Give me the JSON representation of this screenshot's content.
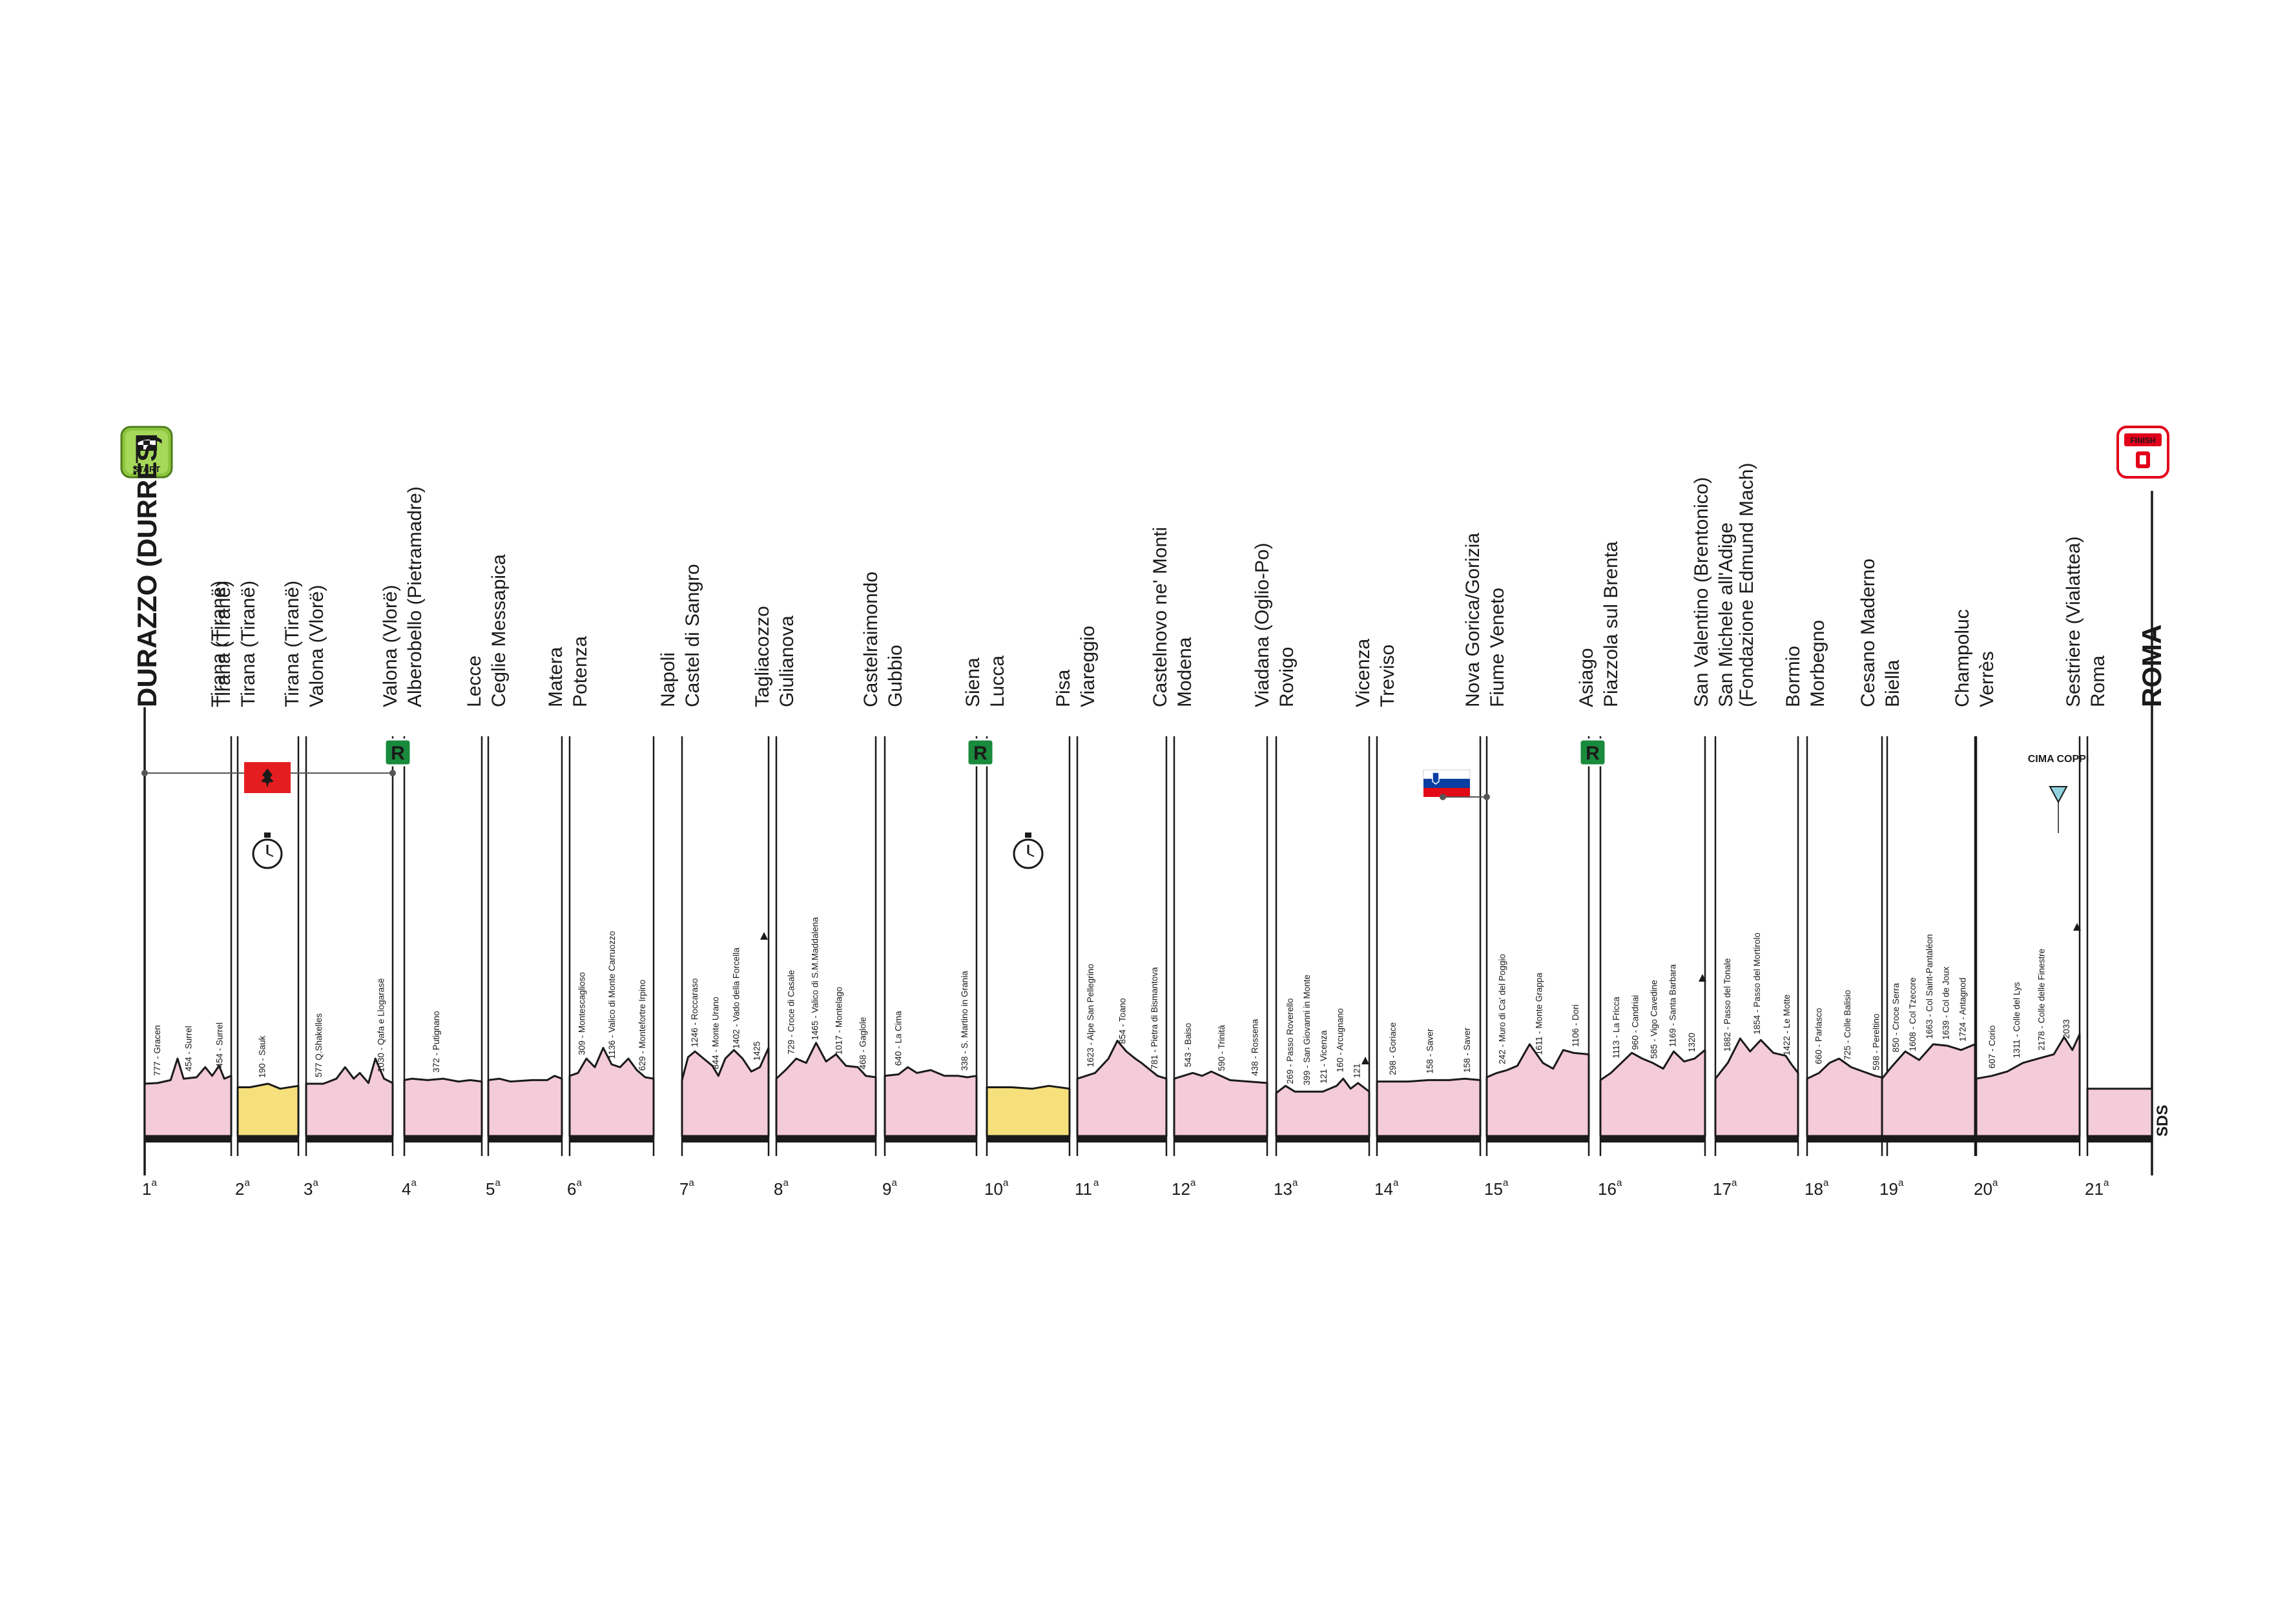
{
  "start": {
    "city": "DURAZZO (DURRËS)",
    "badge": "START"
  },
  "finish": {
    "city": "ROMA",
    "badge": "FINISH"
  },
  "cima_coppi": "CIMA COPPI",
  "brand": "SDS",
  "colors": {
    "mountain_fill": "#f4cbd8",
    "flat_tt_fill": "#f6e07c",
    "profile_stroke": "#1a1a1a",
    "rest_day": "#1a8a3c",
    "albania_flag": "#e41e20",
    "slovenia_red": "#e30a17",
    "slovenia_blue": "#0a3ea3",
    "start_badge": "#8dc63f",
    "finish_badge": "#e2001a",
    "cima_coppi": "#8fd3df"
  },
  "stages": [
    {
      "num": "1",
      "sup": "a",
      "kind": "road",
      "from": "",
      "to": "Tirana (Tiranë)",
      "climbs": [
        "777 - Gracen",
        "454 - Surrel",
        "454 - Surrel"
      ]
    },
    {
      "num": "2",
      "sup": "a",
      "kind": "itt",
      "from": "Tirana (Tiranë)",
      "to": "Tirana (Tiranë)",
      "climbs": [
        "190 - Sauk"
      ]
    },
    {
      "num": "3",
      "sup": "a",
      "kind": "road",
      "from": "Tirana (Tiranë)",
      "to": "Valona (Vlorë)",
      "climbs": [
        "577 Q.Shakelles",
        "1030 - Qafa e Llogarasë"
      ]
    },
    {
      "num": "4",
      "sup": "a",
      "kind": "road",
      "from": "Valona (Vlorë)",
      "to": "Alberobello (Pietramadre)",
      "climbs": [
        "372 - Putignano"
      ]
    },
    {
      "num": "5",
      "sup": "a",
      "kind": "road",
      "from": "Lecce",
      "to": "Ceglie Messapica",
      "climbs": []
    },
    {
      "num": "6",
      "sup": "a",
      "kind": "road",
      "from": "Matera",
      "to": "Potenza",
      "climbs": [
        "309 - Montescaglioso",
        "1136 - Valico di Monte Carruozzo",
        "629 - Montefortre Irpino"
      ]
    },
    {
      "num": "7",
      "sup": "a",
      "kind": "road",
      "from": "Napoli",
      "to": "Castel di Sangro",
      "climbs": [
        "1246 - Roccaraso",
        "844 - Monte Urano",
        "1402 - Vado della Forcella",
        "1425"
      ]
    },
    {
      "num": "8",
      "sup": "a",
      "kind": "road",
      "from": "Tagliacozzo",
      "to": "Giulianova",
      "climbs": [
        "729 - Croce di Casale",
        "1465 - Valico di S.M.Maddalena",
        "1017 - Montelago",
        "468 - Gaglole"
      ]
    },
    {
      "num": "9",
      "sup": "a",
      "kind": "road",
      "from": "Castelraimondo",
      "to": "Gubbio",
      "climbs": [
        "640 - La Cima",
        "338 - S. Martino in Grania"
      ]
    },
    {
      "num": "10",
      "sup": "a",
      "kind": "itt",
      "from": "Siena",
      "to": "Lucca",
      "climbs": []
    },
    {
      "num": "11",
      "sup": "a",
      "kind": "road",
      "from": "Pisa",
      "to": "Viareggio",
      "climbs": [
        "1623 - Alpe San Pellegrino",
        "854 - Toano",
        "781 - Pietra di Bismantova"
      ]
    },
    {
      "num": "12",
      "sup": "a",
      "kind": "road",
      "from": "Castelnovo ne' Monti",
      "to": "Modena",
      "climbs": [
        "543 - Baiso",
        "590 - Trinità",
        "438 - Rossena"
      ]
    },
    {
      "num": "13",
      "sup": "a",
      "kind": "road",
      "from": "Viadana (Oglio-Po)",
      "to": "Rovigo",
      "climbs": [
        "269 - Passo Roverello",
        "399 - San Giovanni in Monte",
        "121 - Vicenza",
        "160 - Arcugnano",
        "121"
      ]
    },
    {
      "num": "14",
      "sup": "a",
      "kind": "road",
      "from": "Vicenza",
      "to": "Treviso",
      "climbs": [
        "298 - Goriace",
        "158 - Saver",
        "158 - Saver"
      ]
    },
    {
      "num": "15",
      "sup": "a",
      "kind": "road",
      "from": "Nova Gorica/Gorizia",
      "to": "Fiume Veneto",
      "climbs": [
        "242 - Muro di Ca' del Poggio",
        "1611 - Monte Grappa",
        "1106 - Dori"
      ]
    },
    {
      "num": "16",
      "sup": "a",
      "kind": "road",
      "from": "Asiago",
      "to": "Piazzola sul Brenta",
      "climbs": [
        "1113 - La Fricca",
        "960 - Candriai",
        "585 - Vigo Cavedine",
        "1169 - Santa Barbara",
        "1320"
      ]
    },
    {
      "num": "17",
      "sup": "a",
      "kind": "road",
      "from": "San Valentino (Brentonico)",
      "to": "San Michele all'Adige (Fondazione Edmund Mach)",
      "to_line2": "(Fondazione Edmund Mach)",
      "to_line1": "San Michele all'Adige",
      "climbs": [
        "1882 - Passo del Tonale",
        "1854 - Passo del Mortirolo",
        "1422 - Le Motte"
      ]
    },
    {
      "num": "18",
      "sup": "a",
      "kind": "road",
      "from": "Bormio",
      "to": "Morbegno",
      "climbs": [
        "660 - Parlasco",
        "725 - Colle Balisio",
        "598 - Pereltino"
      ]
    },
    {
      "num": "19",
      "sup": "a",
      "kind": "road",
      "from": "Cesano Maderno",
      "to": "Biella",
      "climbs": [
        "850 - Croce Serra",
        "1608 - Col Tzecore",
        "1663 - Col Saint-Pantaléon",
        "1639 - Col de Joux",
        "1724 - Antagnod"
      ]
    },
    {
      "num": "20",
      "sup": "a",
      "kind": "road",
      "from": "Champoluc",
      "to": "Verrès",
      "climbs": [
        "607 - Corio",
        "1311 - Colle del Lys",
        "2178 - Colle delle Finestre",
        "2033"
      ]
    },
    {
      "num": "21",
      "sup": "a",
      "kind": "road",
      "from": "Sestriere (Vialattea)",
      "to": "Roma",
      "climbs": []
    }
  ],
  "rest_badge": "R"
}
